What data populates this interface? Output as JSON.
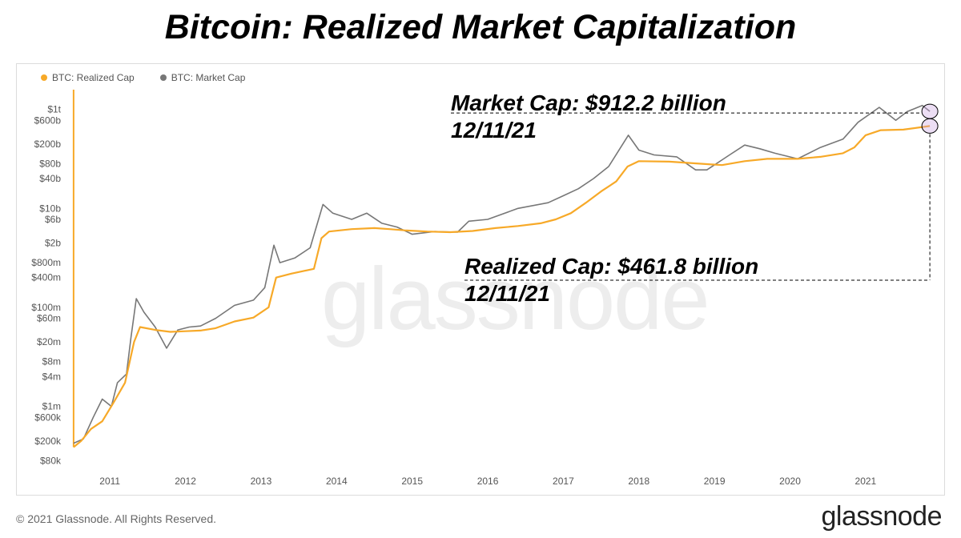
{
  "title": "Bitcoin: Realized Market Capitalization",
  "legend": [
    {
      "label": "BTC: Realized Cap",
      "color": "#f7a928"
    },
    {
      "label": "BTC: Market Cap",
      "color": "#777777"
    }
  ],
  "watermark": "glassnode",
  "annotations": {
    "market_cap": {
      "line1": "Market Cap: $912.2 billion",
      "line2": "12/11/21"
    },
    "realized_cap": {
      "line1": "Realized Cap: $461.8 billion",
      "line2": "12/11/21"
    }
  },
  "footer": {
    "copyright": "© 2021 Glassnode. All Rights Reserved.",
    "brand": "glassnode"
  },
  "colors": {
    "realized": "#f7a928",
    "market": "#777777",
    "highlight": "#c8a0e0"
  },
  "chart_data": {
    "type": "line",
    "yscale": "log",
    "ylim": [
      50000,
      2000000000000
    ],
    "xlim": [
      2010.6,
      2021.97
    ],
    "yticks": [
      {
        "label": "$1t",
        "value": 1000000000000
      },
      {
        "label": "$600b",
        "value": 600000000000
      },
      {
        "label": "$200b",
        "value": 200000000000
      },
      {
        "label": "$80b",
        "value": 80000000000
      },
      {
        "label": "$40b",
        "value": 40000000000
      },
      {
        "label": "$10b",
        "value": 10000000000
      },
      {
        "label": "$6b",
        "value": 6000000000
      },
      {
        "label": "$2b",
        "value": 2000000000
      },
      {
        "label": "$800m",
        "value": 800000000
      },
      {
        "label": "$400m",
        "value": 400000000
      },
      {
        "label": "$100m",
        "value": 100000000
      },
      {
        "label": "$60m",
        "value": 60000000
      },
      {
        "label": "$20m",
        "value": 20000000
      },
      {
        "label": "$8m",
        "value": 8000000
      },
      {
        "label": "$4m",
        "value": 4000000
      },
      {
        "label": "$1m",
        "value": 1000000
      },
      {
        "label": "$600k",
        "value": 600000
      },
      {
        "label": "$200k",
        "value": 200000
      },
      {
        "label": "$80k",
        "value": 80000
      }
    ],
    "xticks": [
      "2011",
      "2012",
      "2013",
      "2014",
      "2015",
      "2016",
      "2017",
      "2018",
      "2019",
      "2020",
      "2021"
    ],
    "series": [
      {
        "name": "BTC: Realized Cap",
        "points": [
          [
            2010.62,
            150000
          ],
          [
            2010.72,
            200000
          ],
          [
            2010.85,
            350000
          ],
          [
            2011.0,
            500000
          ],
          [
            2011.15,
            1200000
          ],
          [
            2011.3,
            3000000
          ],
          [
            2011.42,
            20000000
          ],
          [
            2011.5,
            40000000
          ],
          [
            2011.7,
            35000000
          ],
          [
            2011.9,
            32000000
          ],
          [
            2012.1,
            33000000
          ],
          [
            2012.3,
            34000000
          ],
          [
            2012.5,
            38000000
          ],
          [
            2012.75,
            52000000
          ],
          [
            2013.0,
            62000000
          ],
          [
            2013.2,
            100000000
          ],
          [
            2013.3,
            400000000
          ],
          [
            2013.5,
            480000000
          ],
          [
            2013.8,
            600000000
          ],
          [
            2013.9,
            2500000000
          ],
          [
            2014.0,
            3400000000
          ],
          [
            2014.3,
            3800000000
          ],
          [
            2014.6,
            4000000000
          ],
          [
            2014.8,
            3800000000
          ],
          [
            2015.0,
            3600000000
          ],
          [
            2015.3,
            3400000000
          ],
          [
            2015.6,
            3300000000
          ],
          [
            2015.9,
            3500000000
          ],
          [
            2016.2,
            4000000000
          ],
          [
            2016.5,
            4400000000
          ],
          [
            2016.8,
            5000000000
          ],
          [
            2017.0,
            6000000000
          ],
          [
            2017.2,
            8000000000
          ],
          [
            2017.4,
            13000000000
          ],
          [
            2017.6,
            22000000000
          ],
          [
            2017.8,
            35000000000
          ],
          [
            2017.95,
            70000000000
          ],
          [
            2018.1,
            90000000000
          ],
          [
            2018.5,
            88000000000
          ],
          [
            2018.9,
            80000000000
          ],
          [
            2019.2,
            75000000000
          ],
          [
            2019.5,
            90000000000
          ],
          [
            2019.8,
            100000000000
          ],
          [
            2020.2,
            100000000000
          ],
          [
            2020.5,
            110000000000
          ],
          [
            2020.8,
            130000000000
          ],
          [
            2020.95,
            170000000000
          ],
          [
            2021.1,
            300000000000
          ],
          [
            2021.3,
            380000000000
          ],
          [
            2021.6,
            390000000000
          ],
          [
            2021.95,
            461800000000
          ]
        ]
      },
      {
        "name": "BTC: Market Cap",
        "points": [
          [
            2010.62,
            180000
          ],
          [
            2010.75,
            220000
          ],
          [
            2010.88,
            600000
          ],
          [
            2011.0,
            1400000
          ],
          [
            2011.12,
            1000000
          ],
          [
            2011.2,
            3000000
          ],
          [
            2011.32,
            4500000
          ],
          [
            2011.38,
            25000000
          ],
          [
            2011.45,
            150000000
          ],
          [
            2011.55,
            80000000
          ],
          [
            2011.7,
            40000000
          ],
          [
            2011.85,
            15000000
          ],
          [
            2012.0,
            35000000
          ],
          [
            2012.15,
            40000000
          ],
          [
            2012.3,
            42000000
          ],
          [
            2012.5,
            60000000
          ],
          [
            2012.75,
            110000000
          ],
          [
            2013.0,
            140000000
          ],
          [
            2013.15,
            250000000
          ],
          [
            2013.27,
            1800000000
          ],
          [
            2013.35,
            800000000
          ],
          [
            2013.55,
            1000000000
          ],
          [
            2013.75,
            1600000000
          ],
          [
            2013.92,
            12000000000
          ],
          [
            2014.05,
            8000000000
          ],
          [
            2014.3,
            6000000000
          ],
          [
            2014.5,
            8000000000
          ],
          [
            2014.7,
            5000000000
          ],
          [
            2014.9,
            4200000000
          ],
          [
            2015.1,
            3000000000
          ],
          [
            2015.4,
            3400000000
          ],
          [
            2015.7,
            3300000000
          ],
          [
            2015.85,
            5500000000
          ],
          [
            2016.1,
            6000000000
          ],
          [
            2016.5,
            10000000000
          ],
          [
            2016.9,
            13000000000
          ],
          [
            2017.1,
            18000000000
          ],
          [
            2017.3,
            25000000000
          ],
          [
            2017.5,
            40000000000
          ],
          [
            2017.7,
            70000000000
          ],
          [
            2017.96,
            300000000000
          ],
          [
            2018.1,
            150000000000
          ],
          [
            2018.3,
            120000000000
          ],
          [
            2018.6,
            110000000000
          ],
          [
            2018.85,
            60000000000
          ],
          [
            2019.0,
            60000000000
          ],
          [
            2019.3,
            120000000000
          ],
          [
            2019.5,
            190000000000
          ],
          [
            2019.7,
            160000000000
          ],
          [
            2019.9,
            130000000000
          ],
          [
            2020.2,
            100000000000
          ],
          [
            2020.5,
            170000000000
          ],
          [
            2020.8,
            250000000000
          ],
          [
            2021.0,
            550000000000
          ],
          [
            2021.28,
            1100000000000
          ],
          [
            2021.5,
            600000000000
          ],
          [
            2021.65,
            900000000000
          ],
          [
            2021.85,
            1200000000000
          ],
          [
            2021.95,
            912200000000
          ]
        ]
      }
    ],
    "highlight_points": [
      {
        "series": "BTC: Market Cap",
        "x": 2021.95,
        "y": 912200000000
      },
      {
        "series": "BTC: Realized Cap",
        "x": 2021.95,
        "y": 461800000000
      }
    ]
  }
}
